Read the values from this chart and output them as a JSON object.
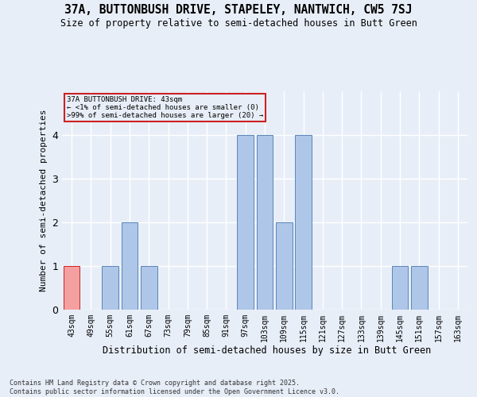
{
  "title": "37A, BUTTONBUSH DRIVE, STAPELEY, NANTWICH, CW5 7SJ",
  "subtitle": "Size of property relative to semi-detached houses in Butt Green",
  "xlabel": "Distribution of semi-detached houses by size in Butt Green",
  "ylabel": "Number of semi-detached properties",
  "categories": [
    "43sqm",
    "49sqm",
    "55sqm",
    "61sqm",
    "67sqm",
    "73sqm",
    "79sqm",
    "85sqm",
    "91sqm",
    "97sqm",
    "103sqm",
    "109sqm",
    "115sqm",
    "121sqm",
    "127sqm",
    "133sqm",
    "139sqm",
    "145sqm",
    "151sqm",
    "157sqm",
    "163sqm"
  ],
  "values": [
    1,
    0,
    1,
    2,
    1,
    0,
    0,
    0,
    0,
    4,
    4,
    2,
    4,
    0,
    0,
    0,
    0,
    1,
    1,
    0,
    0
  ],
  "highlight_index": 0,
  "bar_color": "#aec6e8",
  "bar_edge_color": "#5a87b8",
  "highlight_color": "#f4a0a0",
  "highlight_edge_color": "#cc2222",
  "background_color": "#e8eef8",
  "grid_color": "#ffffff",
  "ylim": [
    0,
    5
  ],
  "yticks": [
    0,
    1,
    2,
    3,
    4
  ],
  "annotation_title": "37A BUTTONBUSH DRIVE: 43sqm",
  "annotation_line1": "← <1% of semi-detached houses are smaller (0)",
  "annotation_line2": ">99% of semi-detached houses are larger (20) →",
  "footer_line1": "Contains HM Land Registry data © Crown copyright and database right 2025.",
  "footer_line2": "Contains public sector information licensed under the Open Government Licence v3.0."
}
